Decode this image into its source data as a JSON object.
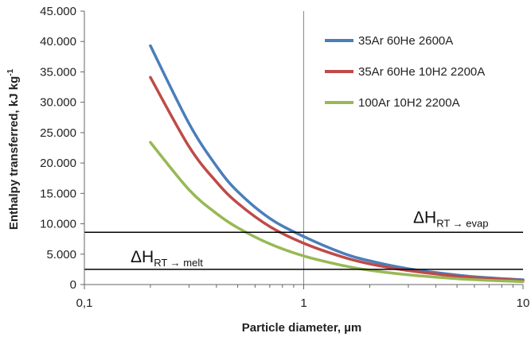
{
  "chart_data": {
    "type": "line",
    "xlabel": "Particle diameter, µm",
    "ylabel_main": "Enthalpy transferred, kJ kg",
    "ylabel_sup": "-1",
    "xscale": "log",
    "xlim": [
      0.1,
      10
    ],
    "ylim": [
      0,
      45000
    ],
    "x_ticks": [
      {
        "value": 0.1,
        "label": "0,1"
      },
      {
        "value": 1,
        "label": "1"
      },
      {
        "value": 10,
        "label": "10"
      }
    ],
    "y_ticks": [
      {
        "value": 0,
        "label": "0"
      },
      {
        "value": 5000,
        "label": "5.000"
      },
      {
        "value": 10000,
        "label": "10.000"
      },
      {
        "value": 15000,
        "label": "15.000"
      },
      {
        "value": 20000,
        "label": "20.000"
      },
      {
        "value": 25000,
        "label": "25.000"
      },
      {
        "value": 30000,
        "label": "30.000"
      },
      {
        "value": 35000,
        "label": "35.000"
      },
      {
        "value": 40000,
        "label": "40.000"
      },
      {
        "value": 45000,
        "label": "45.000"
      }
    ],
    "legend_position": "top-right",
    "series": [
      {
        "name": "35Ar 60He 2600A",
        "color": "#4a7ebb",
        "x": [
          0.2,
          0.3,
          0.4,
          0.5,
          0.7,
          1,
          1.5,
          2,
          3,
          5,
          7,
          10
        ],
        "y": [
          39300,
          26500,
          19500,
          15300,
          10900,
          7900,
          5200,
          3900,
          2600,
          1560,
          1110,
          780
        ]
      },
      {
        "name": "35Ar 60He 10H2 2200A",
        "color": "#be4b48",
        "x": [
          0.2,
          0.3,
          0.4,
          0.5,
          0.7,
          1,
          1.5,
          2,
          3,
          5,
          7,
          10
        ],
        "y": [
          34100,
          22700,
          16900,
          13400,
          9550,
          6800,
          4550,
          3400,
          2300,
          1370,
          980,
          690
        ]
      },
      {
        "name": "100Ar 10H2 2200A",
        "color": "#98b954",
        "x": [
          0.2,
          0.3,
          0.4,
          0.5,
          0.7,
          1,
          1.5,
          2,
          3,
          5,
          7,
          10
        ],
        "y": [
          23400,
          15600,
          11700,
          9350,
          6700,
          4700,
          3150,
          2350,
          1600,
          960,
          690,
          480
        ]
      }
    ],
    "reference_lines": [
      {
        "value": 8600,
        "label_main": "ΔH",
        "label_sub": "RT → evap",
        "color": "#000000"
      },
      {
        "value": 2500,
        "label_main": "ΔH",
        "label_sub": "RT → melt",
        "color": "#000000"
      }
    ],
    "vertical_line": {
      "value": 1,
      "color": "#888888"
    },
    "grid": false
  }
}
